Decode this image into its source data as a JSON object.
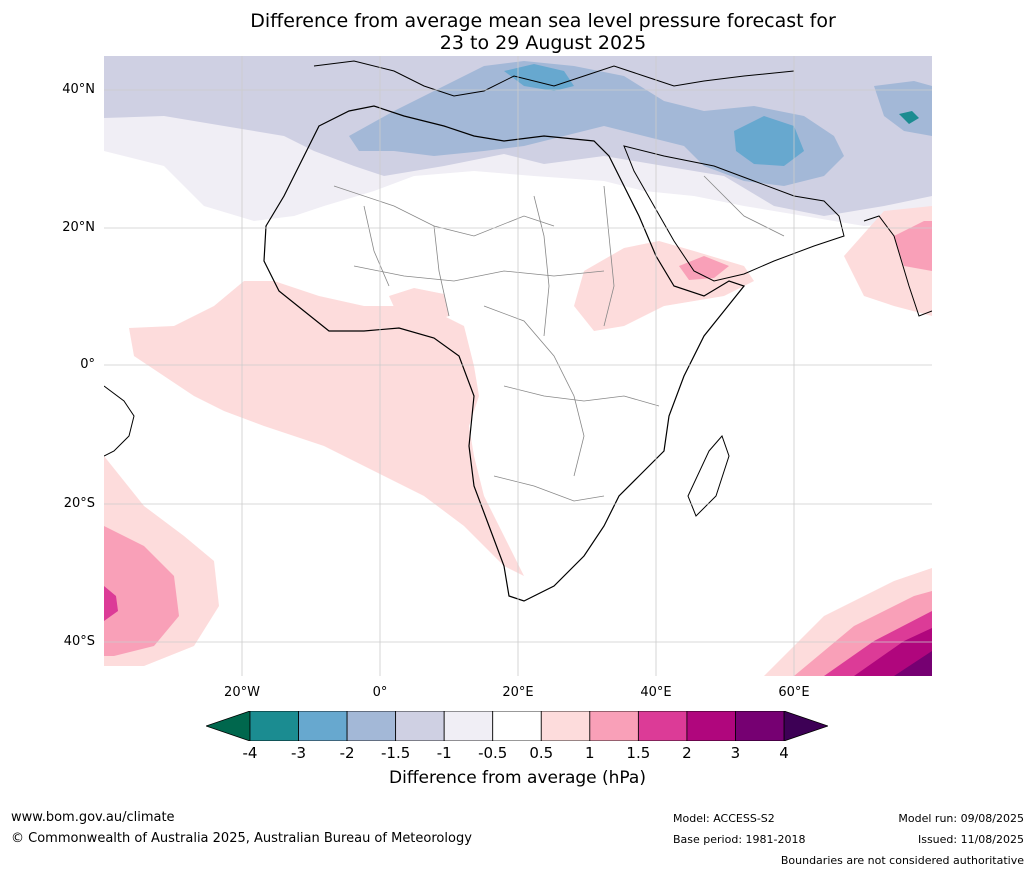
{
  "title_line1": "Difference from average mean sea level pressure forecast for",
  "title_line2": "23 to 29 August 2025",
  "lat_labels": [
    "40°N",
    "20°N",
    "0°",
    "20°S",
    "40°S"
  ],
  "lon_labels": [
    "20°W",
    "0°",
    "20°E",
    "40°E",
    "60°E"
  ],
  "colorbar": {
    "label": "Difference from average (hPa)",
    "ticks": [
      "-4",
      "-3",
      "-2",
      "-1.5",
      "-1",
      "-0.5",
      "0.5",
      "1",
      "1.5",
      "2",
      "3",
      "4"
    ],
    "colors": [
      "#1b8c91",
      "#67a8cf",
      "#a3b8d7",
      "#cfd0e3",
      "#f0eef5",
      "#ffffff",
      "#fddcdc",
      "#f9a0b8",
      "#dc3b97",
      "#b0067d",
      "#760072"
    ],
    "extend_low_color": "#00674d",
    "extend_high_color": "#3d0055"
  },
  "footer": {
    "url": "www.bom.gov.au/climate",
    "copyright": "© Commonwealth of Australia 2025, Australian Bureau of Meteorology",
    "model": "Model: ACCESS-S2",
    "base_period": "Base period: 1981-2018",
    "model_run": "Model run: 09/08/2025",
    "issued": "Issued: 11/08/2025",
    "disclaimer": "Boundaries are not considered authoritative"
  }
}
